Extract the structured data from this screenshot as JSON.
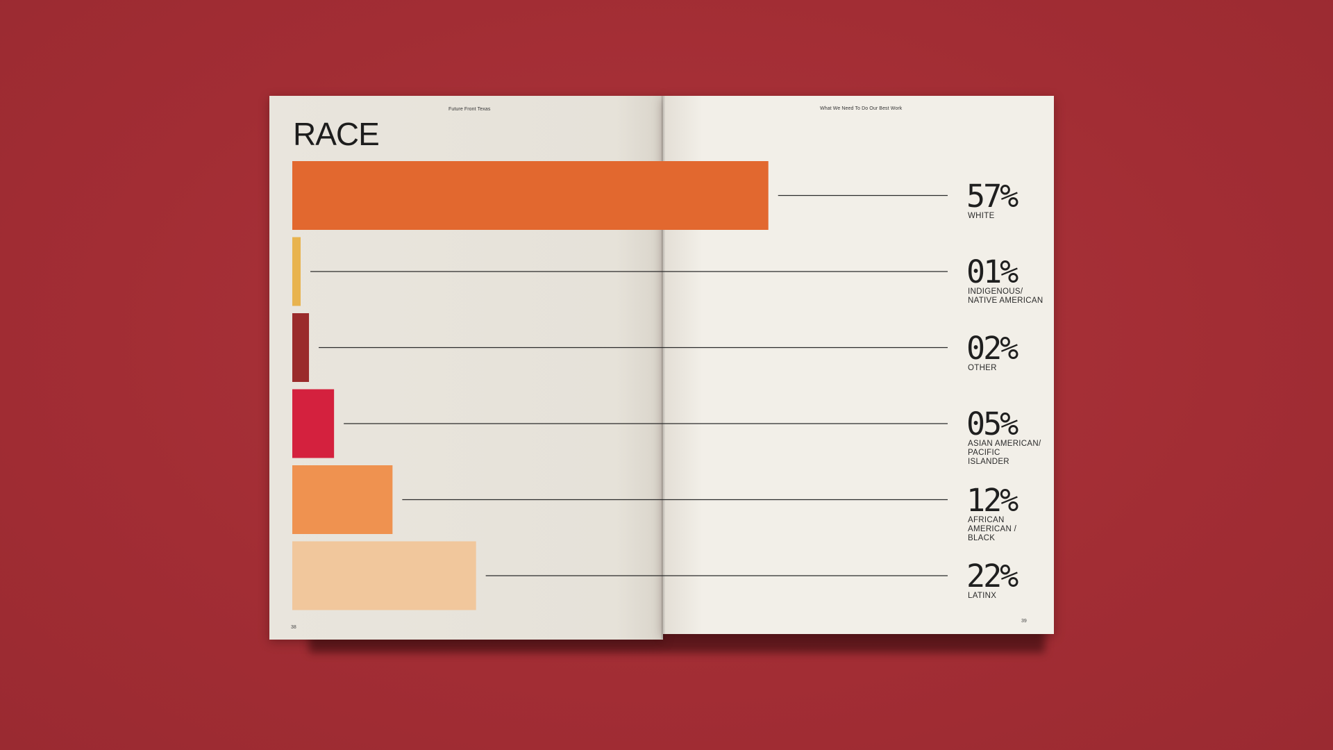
{
  "spread": {
    "left_running_head": "Future Front Texas",
    "right_running_head": "What We Need To Do Our Best Work",
    "left_page_number": "38",
    "right_page_number": "39"
  },
  "chart_data": {
    "type": "bar",
    "title": "RACE",
    "orientation": "horizontal",
    "unit": "%",
    "categories": [
      "WHITE",
      "INDIGENOUS/ NATIVE AMERICAN",
      "OTHER",
      "ASIAN AMERICAN/ PACIFIC ISLANDER",
      "AFRICAN AMERICAN / BLACK",
      "LATINX"
    ],
    "values": [
      57,
      1,
      2,
      5,
      12,
      22
    ],
    "value_labels": [
      "57%",
      "01%",
      "02%",
      "05%",
      "12%",
      "22%"
    ],
    "colors": [
      "#e2682f",
      "#e8b34e",
      "#9a2b2b",
      "#d4213e",
      "#ef9250",
      "#f1c79c"
    ],
    "grid": false,
    "legend": "none"
  }
}
